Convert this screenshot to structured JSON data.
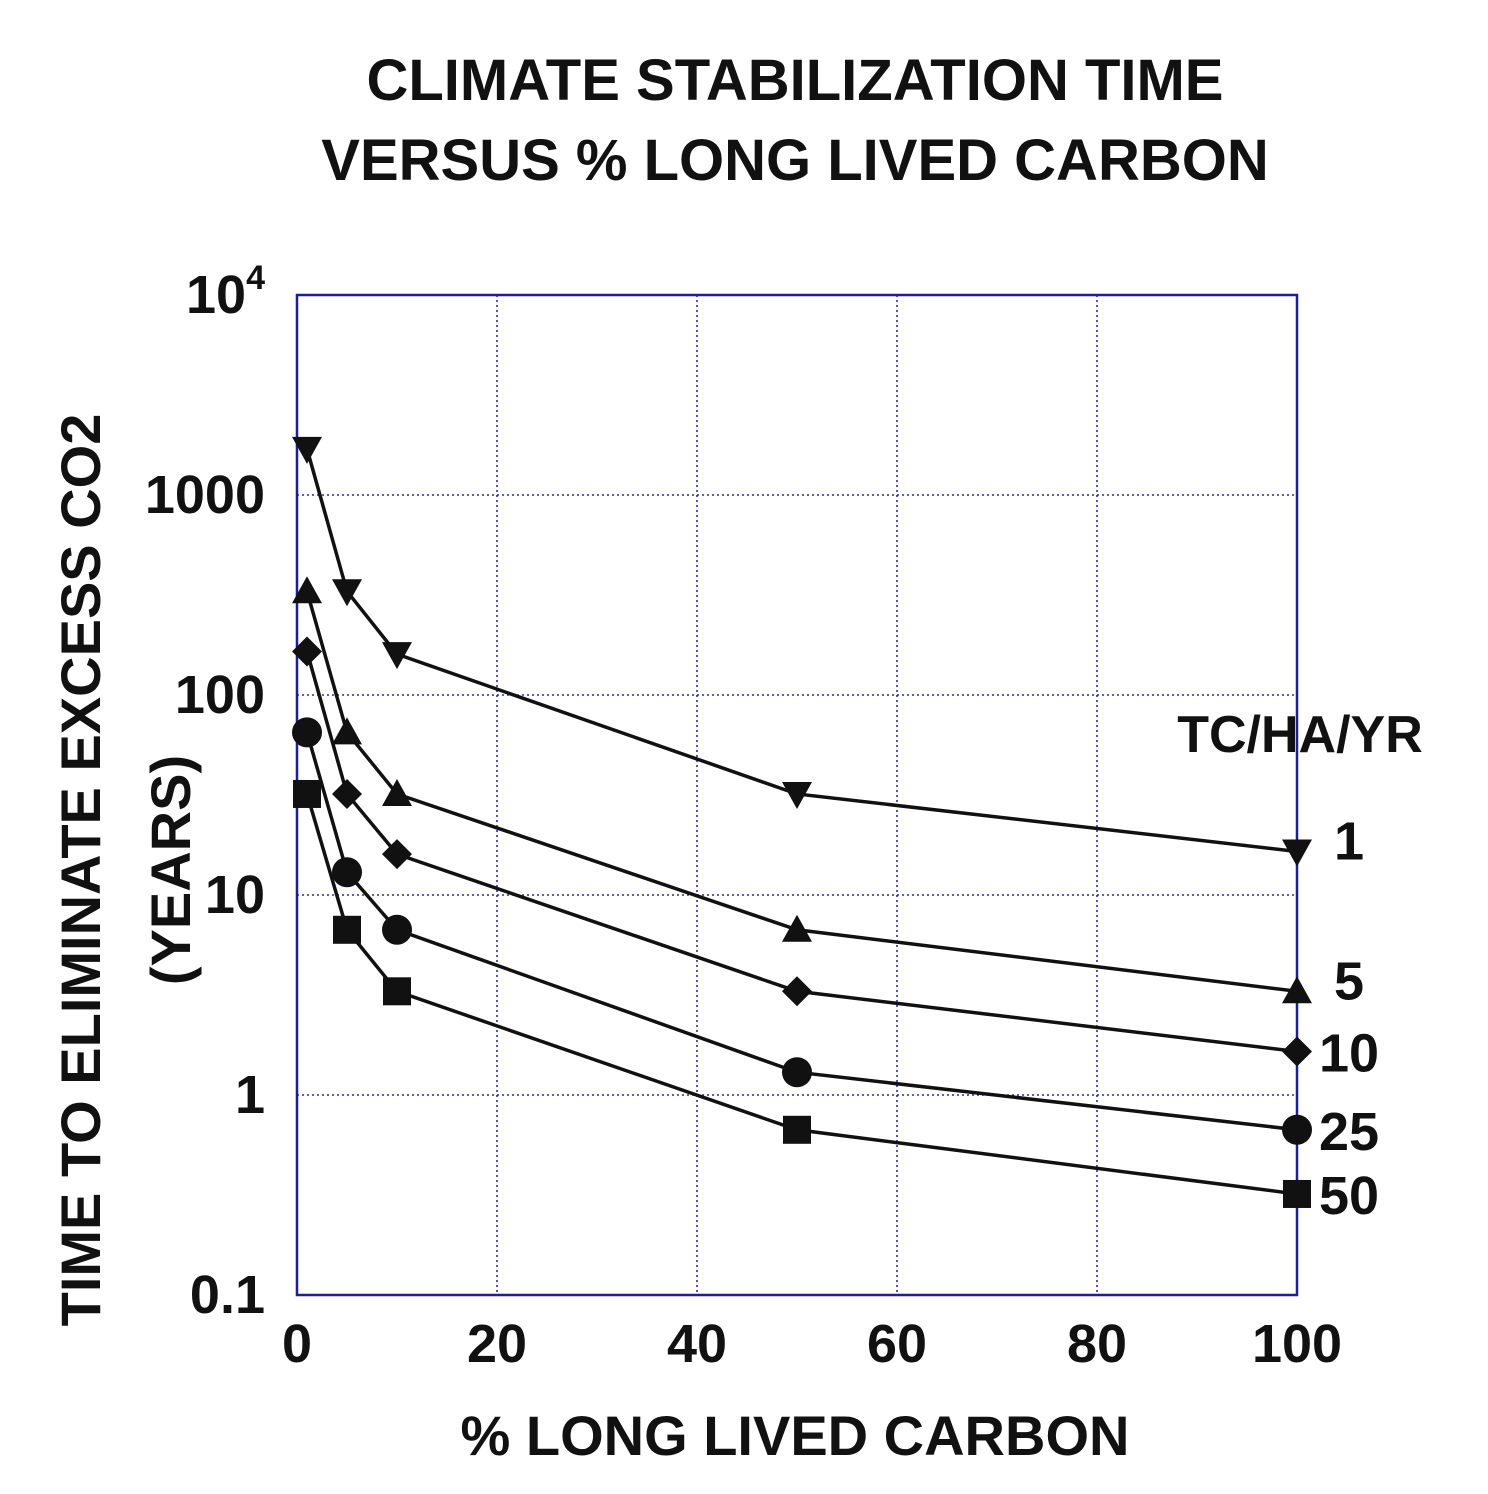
{
  "chart_data": {
    "type": "line",
    "title": [
      "CLIMATE STABILIZATION TIME",
      "VERSUS % LONG LIVED CARBON"
    ],
    "xlabel": "% LONG LIVED CARBON",
    "ylabel": [
      "TIME TO ELIMINATE EXCESS CO2",
      "(YEARS)"
    ],
    "xlim": [
      0,
      100
    ],
    "ylim": [
      0.1,
      10000
    ],
    "yscale": "log",
    "grid": true,
    "x_ticks": [
      "0",
      "20",
      "40",
      "60",
      "80",
      "100"
    ],
    "x_tick_values": [
      0,
      20,
      40,
      60,
      80,
      100
    ],
    "y_ticks": [
      {
        "base": "10",
        "exp": "4",
        "value": 10000
      },
      {
        "base": "1000",
        "exp": "",
        "value": 1000
      },
      {
        "base": "100",
        "exp": "",
        "value": 100
      },
      {
        "base": "10",
        "exp": "",
        "value": 10
      },
      {
        "base": "1",
        "exp": "",
        "value": 1
      },
      {
        "base": "0.1",
        "exp": "",
        "value": 0.1
      }
    ],
    "legend_title": "TC/HA/YR",
    "x": [
      1,
      5,
      10,
      50,
      100
    ],
    "series": [
      {
        "name": "1",
        "marker": "triangle-down",
        "values": [
          1700,
          330,
          160,
          32,
          16.5
        ]
      },
      {
        "name": "5",
        "marker": "triangle-up",
        "values": [
          330,
          65,
          32,
          6.7,
          3.3
        ]
      },
      {
        "name": "10",
        "marker": "diamond",
        "values": [
          165,
          32,
          16,
          3.3,
          1.65
        ]
      },
      {
        "name": "25",
        "marker": "circle",
        "values": [
          65,
          13,
          6.7,
          1.3,
          0.67
        ]
      },
      {
        "name": "50",
        "marker": "square",
        "values": [
          32,
          6.7,
          3.3,
          0.67,
          0.32
        ]
      }
    ]
  }
}
